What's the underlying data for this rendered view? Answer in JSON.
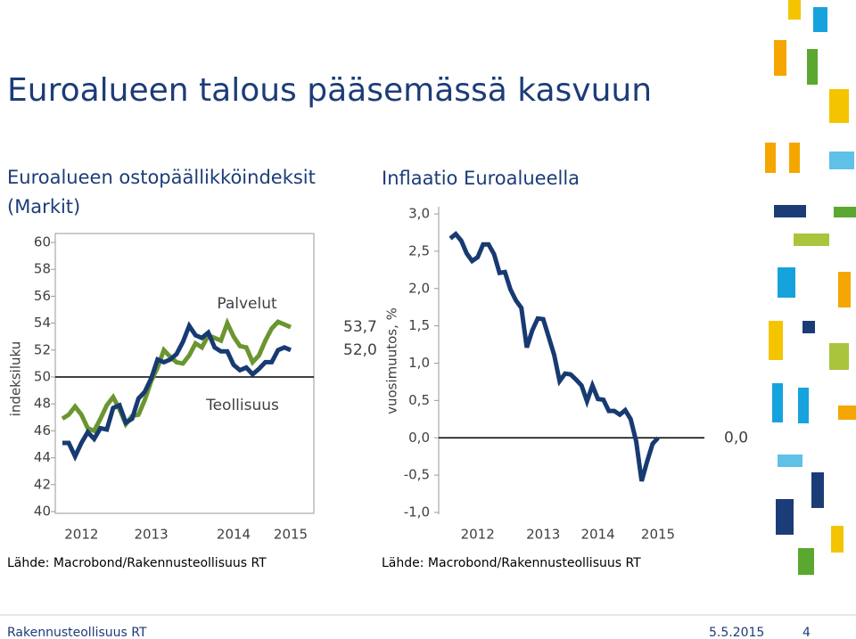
{
  "title": "Euroalueen talous pääsemässä kasvuun",
  "footer": {
    "left": "Rakennusteollisuus RT",
    "date": "5.5.2015",
    "page": "4"
  },
  "chart_data": [
    {
      "type": "line",
      "title_lines": [
        "Euroalueen ostopäällikköindeksit",
        "(Markit)"
      ],
      "y_label": "indeksiluku",
      "source": "Lähde: Macrobond/Rakennusteollisuus RT",
      "categories": [
        null,
        null,
        null,
        "2012",
        null,
        null,
        null,
        null,
        null,
        null,
        null,
        null,
        null,
        null,
        "2013",
        null,
        null,
        null,
        null,
        null,
        null,
        null,
        null,
        null,
        null,
        null,
        null,
        "2014",
        null,
        null,
        null,
        null,
        null,
        null,
        null,
        null,
        "2015"
      ],
      "series": [
        {
          "name": "Palvelut",
          "color": "#6b9530",
          "values": [
            46.9,
            47.2,
            47.8,
            47.2,
            46.2,
            46.0,
            46.9,
            47.9,
            48.5,
            47.6,
            46.5,
            47.1,
            47.2,
            48.3,
            49.7,
            50.7,
            52.0,
            51.5,
            51.1,
            51.0,
            51.6,
            52.5,
            52.2,
            53.1,
            52.9,
            52.7,
            54.0,
            53.0,
            52.3,
            52.2,
            51.1,
            51.6,
            52.7,
            53.6,
            54.1,
            53.9,
            53.7
          ],
          "value_labels": [
            null,
            null,
            null,
            null,
            null,
            null,
            null,
            null,
            null,
            null,
            null,
            null,
            null,
            null,
            null,
            null,
            null,
            null,
            null,
            null,
            null,
            null,
            null,
            null,
            null,
            null,
            null,
            null,
            null,
            null,
            null,
            null,
            null,
            null,
            null,
            null,
            "53,7"
          ]
        },
        {
          "name": "Teollisuus",
          "color": "#183a72",
          "values": [
            45.1,
            45.1,
            44.1,
            45.1,
            45.9,
            45.4,
            46.2,
            46.1,
            47.7,
            47.9,
            46.6,
            46.9,
            48.4,
            48.9,
            49.9,
            51.3,
            51.1,
            51.3,
            51.7,
            52.6,
            53.8,
            53.1,
            52.9,
            53.3,
            52.2,
            51.9,
            51.9,
            50.9,
            50.5,
            50.7,
            50.2,
            50.6,
            51.1,
            51.1,
            52.0,
            52.2,
            52.0
          ],
          "value_labels": [
            null,
            null,
            null,
            null,
            null,
            null,
            null,
            null,
            null,
            null,
            null,
            null,
            null,
            null,
            null,
            null,
            null,
            null,
            null,
            null,
            null,
            null,
            null,
            null,
            null,
            null,
            null,
            null,
            null,
            null,
            null,
            null,
            null,
            null,
            null,
            null,
            "52,0"
          ]
        }
      ],
      "ylim": [
        40,
        60
      ],
      "yticks": [
        40,
        42,
        44,
        46,
        48,
        50,
        52,
        54,
        56,
        58,
        60
      ],
      "hline": 50,
      "grid": false
    },
    {
      "type": "line",
      "title_lines": [
        "Inflaatio Euroalueella"
      ],
      "y_label": "vuosimuutos, %",
      "source": "Lähde: Macrobond/Rakennusteollisuus RT",
      "categories": [
        null,
        null,
        null,
        null,
        null,
        "2012",
        null,
        null,
        null,
        null,
        null,
        null,
        null,
        null,
        null,
        null,
        null,
        "2013",
        null,
        null,
        null,
        null,
        null,
        null,
        null,
        null,
        null,
        "2014",
        null,
        null,
        null,
        null,
        null,
        null,
        null,
        null,
        null,
        null,
        "2015"
      ],
      "series": [
        {
          "name": null,
          "color": "#183a72",
          "values": [
            2.67,
            2.73,
            2.64,
            2.47,
            2.37,
            2.42,
            2.59,
            2.59,
            2.46,
            2.21,
            2.22,
            1.99,
            1.84,
            1.74,
            1.21,
            1.44,
            1.6,
            1.59,
            1.35,
            1.11,
            0.76,
            0.86,
            0.85,
            0.78,
            0.7,
            0.49,
            0.7,
            0.52,
            0.51,
            0.36,
            0.36,
            0.31,
            0.37,
            0.25,
            -0.05,
            -0.58,
            -0.32,
            -0.08,
            0.0
          ],
          "value_labels": [
            null,
            null,
            null,
            null,
            null,
            null,
            null,
            null,
            null,
            null,
            null,
            null,
            null,
            null,
            null,
            null,
            null,
            null,
            null,
            null,
            null,
            null,
            null,
            null,
            null,
            null,
            null,
            null,
            null,
            null,
            null,
            null,
            null,
            null,
            null,
            null,
            null,
            null,
            "0,0"
          ]
        }
      ],
      "ylim": [
        -1,
        3
      ],
      "yticks": [
        {
          "value": -1,
          "label": "-1,0"
        },
        {
          "value": -0.5,
          "label": "-0,5"
        },
        {
          "value": 0,
          "label": "0,0"
        },
        {
          "value": 0.5,
          "label": "0,5"
        },
        {
          "value": 1,
          "label": "1,0"
        },
        {
          "value": 1.5,
          "label": "1,5"
        },
        {
          "value": 2,
          "label": "2,0"
        },
        {
          "value": 2.5,
          "label": "2,5"
        },
        {
          "value": 3,
          "label": "3,0"
        }
      ],
      "hline": 0,
      "grid": false
    }
  ]
}
